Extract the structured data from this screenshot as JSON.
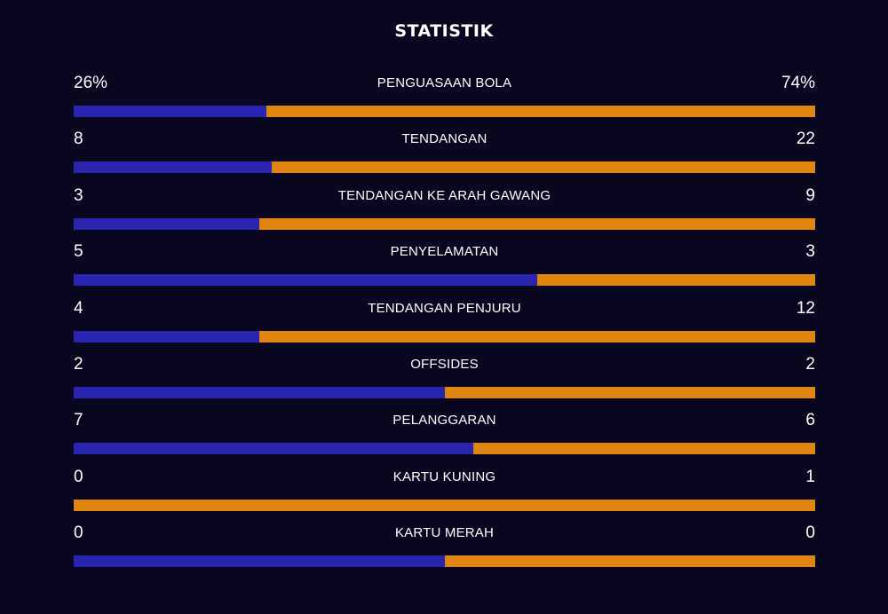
{
  "title": "STATISTIK",
  "colors": {
    "background": "#08071f",
    "home": "#2a25b0",
    "away": "#e0850f",
    "text": "#ffffff"
  },
  "stats": [
    {
      "label": "PENGUASAAN BOLA",
      "home": "26%",
      "away": "74%",
      "home_share": 0.26
    },
    {
      "label": "TENDANGAN",
      "home": "8",
      "away": "22",
      "home_share": 0.2667
    },
    {
      "label": "TENDANGAN KE ARAH GAWANG",
      "home": "3",
      "away": "9",
      "home_share": 0.25
    },
    {
      "label": "PENYELAMATAN",
      "home": "5",
      "away": "3",
      "home_share": 0.625
    },
    {
      "label": "TENDANGAN PENJURU",
      "home": "4",
      "away": "12",
      "home_share": 0.25
    },
    {
      "label": "OFFSIDES",
      "home": "2",
      "away": "2",
      "home_share": 0.5
    },
    {
      "label": "PELANGGARAN",
      "home": "7",
      "away": "6",
      "home_share": 0.5385
    },
    {
      "label": "KARTU KUNING",
      "home": "0",
      "away": "1",
      "home_share": 0.0
    },
    {
      "label": "KARTU MERAH",
      "home": "0",
      "away": "0",
      "home_share": 0.5
    }
  ]
}
